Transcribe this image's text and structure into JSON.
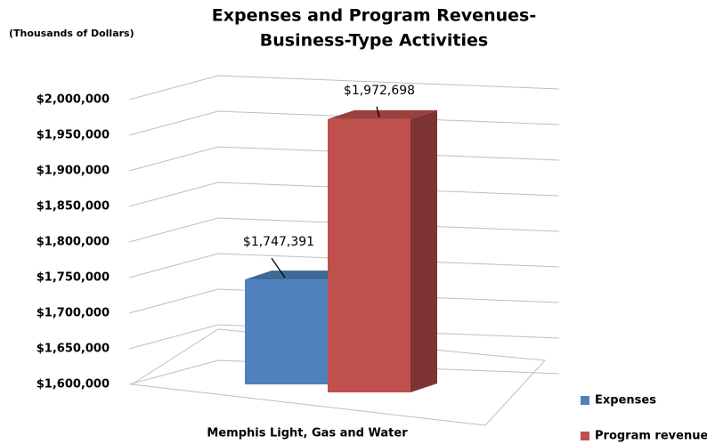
{
  "chart_data": {
    "type": "bar3d",
    "title": [
      "Expenses and Program Revenues-",
      "Business-Type Activities"
    ],
    "subtitle": "(Thousands of Dollars)",
    "categories": [
      "Memphis Light, Gas and Water"
    ],
    "series": [
      {
        "name": "Expenses",
        "color": "#4f81bd",
        "values": [
          1747391
        ],
        "value_labels": [
          "$1,747,391"
        ]
      },
      {
        "name": "Program revenues",
        "color": "#c0504d",
        "values": [
          1972698
        ],
        "value_labels": [
          "$1,972,698"
        ]
      }
    ],
    "ylim": [
      1600000,
      2000000
    ],
    "yticks": [
      {
        "value": 1600000,
        "label": "$1,600,000"
      },
      {
        "value": 1650000,
        "label": "$1,650,000"
      },
      {
        "value": 1700000,
        "label": "$1,700,000"
      },
      {
        "value": 1750000,
        "label": "$1,750,000"
      },
      {
        "value": 1800000,
        "label": "$1,800,000"
      },
      {
        "value": 1850000,
        "label": "$1,850,000"
      },
      {
        "value": 1900000,
        "label": "$1,900,000"
      },
      {
        "value": 1950000,
        "label": "$1,950,000"
      },
      {
        "value": 2000000,
        "label": "$2,000,000"
      }
    ],
    "grid": true,
    "legend": "bottom-right"
  }
}
